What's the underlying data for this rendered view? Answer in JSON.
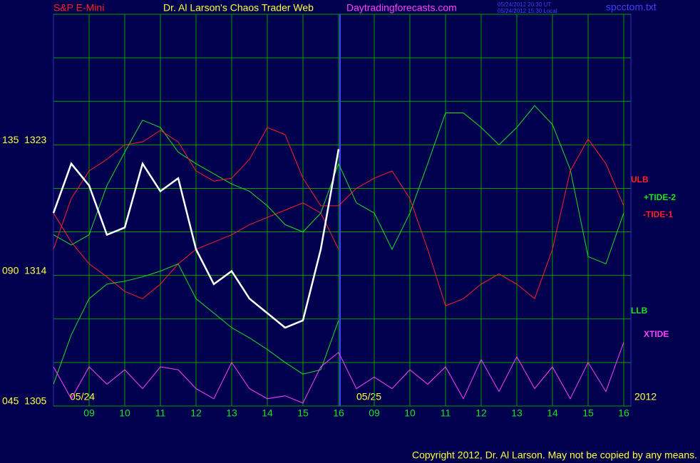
{
  "chart_data": {
    "type": "line",
    "title": "Dr. Al Larson's Chaos Trader Web",
    "instrument": "S&P E-Mini",
    "site": "Daytradingforecasts.com",
    "timestamp_ut": "05/24/2012 20:30 UT",
    "timestamp_local": "05/24/2012 15:30 Local",
    "file": "spcctom.txt",
    "dates": [
      "05/24",
      "05/25"
    ],
    "year": "2012",
    "copyright": "Copyright 2012, Dr. Al Larson. May not be copied by any means.",
    "xlim": [
      0,
      16.2
    ],
    "xticks": [
      {
        "value": 1,
        "label": "09"
      },
      {
        "value": 2,
        "label": "10"
      },
      {
        "value": 3,
        "label": "11"
      },
      {
        "value": 4,
        "label": "12"
      },
      {
        "value": 5,
        "label": "13"
      },
      {
        "value": 6,
        "label": "14"
      },
      {
        "value": 7,
        "label": "15"
      },
      {
        "value": 8,
        "label": "16"
      },
      {
        "value": 9,
        "label": "09"
      },
      {
        "value": 10,
        "label": "10"
      },
      {
        "value": 11,
        "label": "11"
      },
      {
        "value": 12,
        "label": "12"
      },
      {
        "value": 13,
        "label": "13"
      },
      {
        "value": 14,
        "label": "14"
      },
      {
        "value": 15,
        "label": "15"
      },
      {
        "value": 16,
        "label": "16"
      }
    ],
    "ylim": [
      1305,
      1332
    ],
    "yticks": [
      {
        "value": 1323,
        "label": "135  1323"
      },
      {
        "value": 1314,
        "label": "090  1314"
      },
      {
        "value": 1305,
        "label": "045  1305"
      }
    ],
    "ygrid": [
      1305,
      1308,
      1311,
      1314,
      1317,
      1320,
      1323,
      1326,
      1329,
      1332
    ],
    "grid": true,
    "x": [
      0,
      0.5,
      1,
      1.5,
      2,
      2.5,
      3,
      3.5,
      4,
      4.5,
      5,
      5.5,
      6,
      6.5,
      7,
      7.5,
      8,
      8.5,
      9,
      9.5,
      10,
      10.5,
      11,
      11.5,
      12,
      12.5,
      13,
      13.5,
      14,
      14.5,
      15,
      15.5,
      16
    ],
    "series": [
      {
        "name": "ULB",
        "color": "#ff2020",
        "values": [
          1318.3,
          1316.3,
          1314.8,
          1313.9,
          1312.9,
          1312.4,
          1313.4,
          1314.8,
          1315.8,
          1316.3,
          1316.8,
          1317.5,
          1318.0,
          1318.5,
          1319.0,
          1318.3,
          1315.8,
          null,
          null,
          null,
          null,
          null,
          null,
          null,
          null,
          null,
          null,
          null,
          null,
          null,
          null,
          null,
          null
        ]
      },
      {
        "name": "+TIDE-2",
        "color": "#20e020",
        "values": [
          1316.8,
          1316.1,
          1316.8,
          1320.2,
          1322.5,
          1324.7,
          1324.2,
          1322.5,
          1321.7,
          1321.0,
          1320.3,
          1319.8,
          1318.8,
          1317.5,
          1317.0,
          1318.3,
          1321.7,
          1319.0,
          1318.3,
          1315.8,
          1318.3,
          1321.7,
          1325.2,
          1325.2,
          1324.2,
          1323.0,
          1324.2,
          1325.7,
          1324.4,
          1321.3,
          1315.3,
          1314.8,
          1318.3
        ]
      },
      {
        "name": "-TIDE-1",
        "color": "#ff2020",
        "values": [
          1315.8,
          1319.3,
          1321.2,
          1322.0,
          1323.0,
          1323.2,
          1324.0,
          1323.2,
          1321.2,
          1320.5,
          1320.7,
          1322.0,
          1324.2,
          1323.7,
          1320.7,
          1318.8,
          1318.8,
          1320.0,
          1320.7,
          1321.2,
          1319.3,
          1315.8,
          1311.9,
          1312.4,
          1313.4,
          1314.1,
          1313.4,
          1312.4,
          1315.8,
          1321.2,
          1323.4,
          1321.7,
          1318.8
        ]
      },
      {
        "name": "LLB",
        "color": "#20e020",
        "values": [
          1306.5,
          1309.9,
          1312.4,
          1313.4,
          1313.6,
          1313.9,
          1314.3,
          1314.8,
          1312.4,
          1311.4,
          1310.4,
          1309.7,
          1308.9,
          1308.0,
          1307.2,
          1307.5,
          1310.9,
          null,
          null,
          null,
          null,
          null,
          null,
          null,
          null,
          null,
          null,
          null,
          null,
          null,
          null,
          null,
          null
        ]
      },
      {
        "name": "XTIDE",
        "color": "#ff40ff",
        "values": [
          1307.7,
          1305.5,
          1307.7,
          1306.5,
          1307.5,
          1306.2,
          1307.7,
          1307.5,
          1306.2,
          1305.5,
          1308.0,
          1306.2,
          1305.5,
          1305.7,
          1305.2,
          1307.7,
          1308.7,
          1306.2,
          1307.0,
          1306.2,
          1307.5,
          1306.5,
          1307.7,
          1305.5,
          1308.2,
          1306.0,
          1308.4,
          1306.2,
          1307.7,
          1305.5,
          1308.0,
          1306.0,
          1309.4
        ]
      },
      {
        "color": "#ffffff",
        "values": [
          1318.3,
          1321.7,
          1320.2,
          1316.8,
          1317.3,
          1321.7,
          1319.8,
          1320.7,
          1315.8,
          1313.4,
          1314.3,
          1312.4,
          1311.4,
          1310.4,
          1310.9,
          1315.8,
          1322.7,
          null,
          null,
          null,
          null,
          null,
          null,
          null,
          null,
          null,
          null,
          null,
          null,
          null,
          null,
          null,
          null
        ]
      }
    ]
  }
}
